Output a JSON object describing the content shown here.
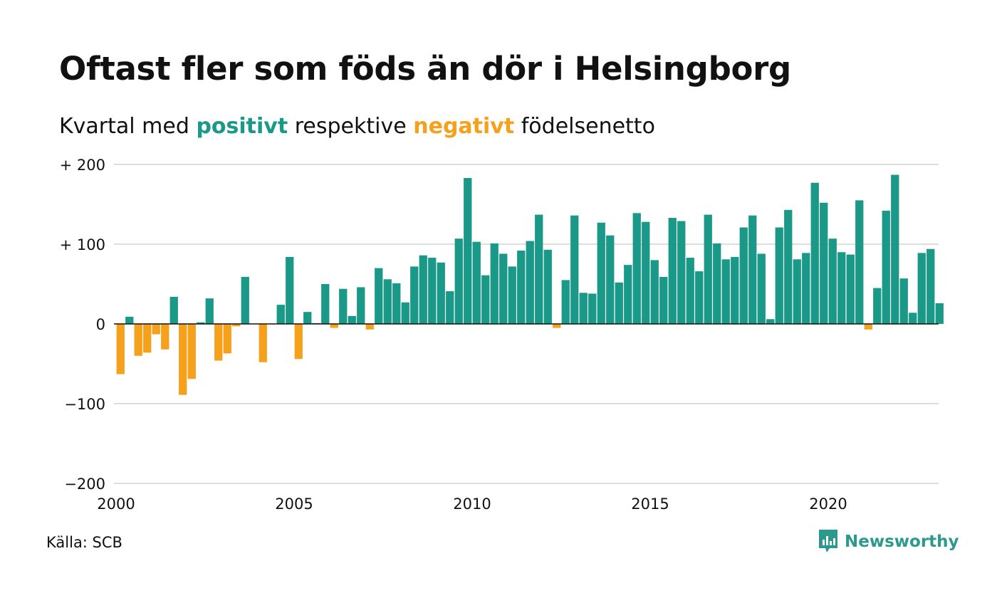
{
  "title": "Oftast fler som föds än dör i Helsingborg",
  "subtitle": {
    "prefix": "Kvartal med",
    "positive": "positivt",
    "middle": "respektive",
    "negative": "negativt",
    "suffix": "födelsenetto"
  },
  "source": "Källa: SCB",
  "brand": "Newsworthy",
  "colors": {
    "positive": "#1a9988",
    "negative": "#f5a11c",
    "grid": "#dddddd",
    "brand": "#2b9a8c"
  },
  "chart_data": {
    "type": "bar",
    "x_start": "2000 Q1",
    "frequency": "quarter",
    "ylim": [
      -200,
      200
    ],
    "y_ticks": [
      {
        "value": 200,
        "label": "+ 200"
      },
      {
        "value": 100,
        "label": "+ 100"
      },
      {
        "value": 0,
        "label": "0"
      },
      {
        "value": -100,
        "label": "−100"
      },
      {
        "value": -200,
        "label": "−200"
      }
    ],
    "x_ticks": [
      {
        "value": 2000,
        "label": "2000"
      },
      {
        "value": 2005,
        "label": "2005"
      },
      {
        "value": 2010,
        "label": "2010"
      },
      {
        "value": 2015,
        "label": "2015"
      },
      {
        "value": 2020,
        "label": "2020"
      }
    ],
    "values": [
      -63,
      9,
      -40,
      -36,
      -13,
      -32,
      34,
      -89,
      -69,
      2,
      32,
      -46,
      -37,
      -3,
      59,
      0,
      -48,
      0,
      24,
      84,
      -44,
      15,
      1,
      50,
      -5,
      44,
      10,
      46,
      -7,
      70,
      56,
      51,
      27,
      72,
      86,
      83,
      77,
      41,
      107,
      183,
      103,
      61,
      101,
      88,
      72,
      92,
      104,
      137,
      93,
      -5,
      55,
      136,
      39,
      38,
      127,
      111,
      52,
      74,
      139,
      128,
      80,
      59,
      133,
      129,
      83,
      66,
      137,
      101,
      81,
      84,
      121,
      136,
      88,
      6,
      121,
      143,
      81,
      89,
      177,
      152,
      107,
      90,
      87,
      155,
      -7,
      45,
      142,
      187,
      57,
      14,
      89,
      94,
      26
    ]
  }
}
